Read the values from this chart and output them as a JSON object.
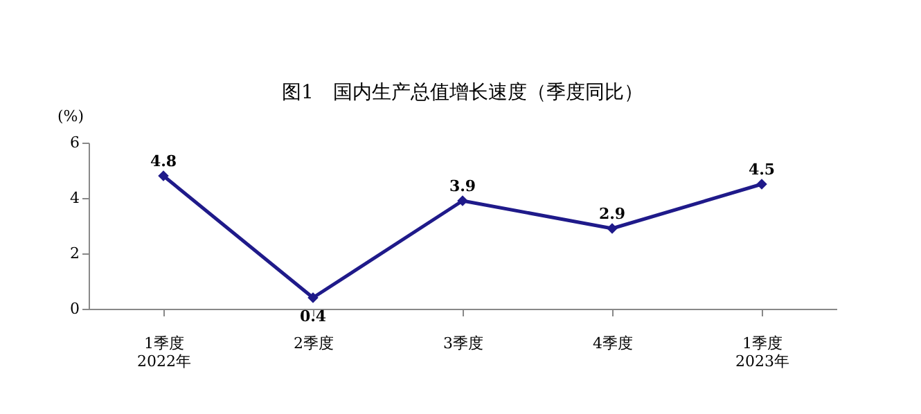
{
  "chart_data": {
    "type": "line",
    "title": "图1　国内生产总值增长速度（季度同比）",
    "ylabel": "(%)",
    "categories": [
      "1季度\n2022年",
      "2季度",
      "3季度",
      "4季度",
      "1季度\n2023年"
    ],
    "series": [
      {
        "color": "#1f1a8a",
        "values": [
          4.8,
          0.4,
          3.9,
          2.9,
          4.5
        ]
      }
    ],
    "ylim": [
      0,
      6
    ],
    "yticks": [
      0,
      2,
      4,
      6
    ],
    "grid": false,
    "marker": "diamond",
    "line_style": "solid",
    "data_labels": true
  }
}
